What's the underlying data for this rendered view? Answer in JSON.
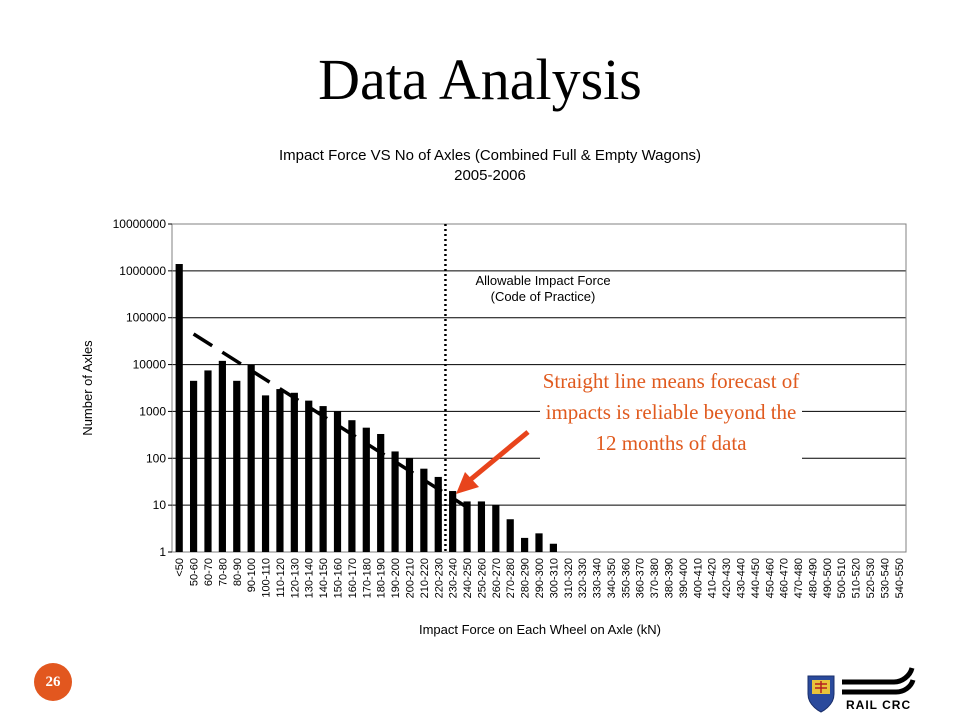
{
  "slide": {
    "title": "Data Analysis",
    "callout": "Straight line means forecast of impacts is reliable beyond the 12 months of data",
    "page_number": "26",
    "logo_text": "RAIL CRC"
  },
  "colors": {
    "bars": "#000000",
    "arrow": "#e8441c",
    "callout_text": "#e05a1e",
    "page_badge": "#e2571f"
  },
  "chart_data": {
    "type": "bar",
    "title_line1": "Impact Force VS No of Axles (Combined Full & Empty Wagons)",
    "title_line2": "2005-2006",
    "xlabel": "Impact Force on Each Wheel on Axle (kN)",
    "ylabel": "Number of Axles",
    "yscale": "log",
    "ylim": [
      1,
      10000000
    ],
    "yticks": [
      "1",
      "10",
      "100",
      "1000",
      "10000",
      "100000",
      "1000000",
      "10000000"
    ],
    "grid": "horizontal",
    "categories": [
      "<50",
      "50-60",
      "60-70",
      "70-80",
      "80-90",
      "90-100",
      "100-110",
      "110-120",
      "120-130",
      "130-140",
      "140-150",
      "150-160",
      "160-170",
      "170-180",
      "180-190",
      "190-200",
      "200-210",
      "210-220",
      "220-230",
      "230-240",
      "240-250",
      "250-260",
      "260-270",
      "270-280",
      "280-290",
      "290-300",
      "300-310",
      "310-320",
      "320-330",
      "330-340",
      "340-350",
      "350-360",
      "360-370",
      "370-380",
      "380-390",
      "390-400",
      "400-410",
      "410-420",
      "420-430",
      "430-440",
      "440-450",
      "450-460",
      "460-470",
      "470-480",
      "480-490",
      "490-500",
      "500-510",
      "510-520",
      "520-530",
      "530-540",
      "540-550"
    ],
    "values": [
      1400000,
      4500,
      7500,
      12000,
      4500,
      10000,
      2200,
      3000,
      2500,
      1700,
      1300,
      1000,
      650,
      450,
      330,
      140,
      100,
      60,
      40,
      20,
      12,
      12,
      10,
      5,
      2,
      2.5,
      1.5,
      0,
      0,
      1,
      0,
      0,
      0,
      0,
      0,
      0,
      0,
      0,
      0,
      0,
      0,
      0,
      0,
      0,
      0,
      0,
      0,
      0,
      0,
      0,
      0
    ],
    "trend_line": {
      "style": "dashed",
      "from": {
        "category": "50-60",
        "value": 45000
      },
      "to": {
        "category": "240-250",
        "value": 9
      }
    },
    "reference_line": {
      "category": "220-230",
      "style": "dotted",
      "label_line1": "Allowable Impact Force",
      "label_line2": "(Code of Practice)"
    }
  }
}
